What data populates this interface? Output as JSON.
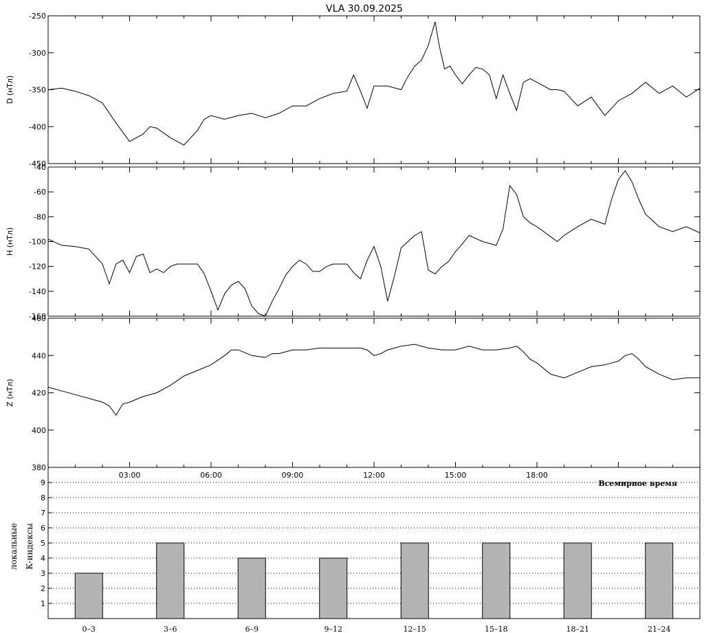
{
  "chart_data": [
    {
      "type": "line",
      "title": "VLA   30.09.2025",
      "ylabel": "D (нТл)",
      "ylim": [
        -450,
        -250
      ],
      "yticks": [
        -450,
        -400,
        -350,
        -300,
        -250
      ],
      "xlim": [
        0,
        24
      ],
      "x": [
        0.0,
        0.5,
        1.0,
        1.5,
        2.0,
        2.5,
        3.0,
        3.5,
        3.75,
        4.0,
        4.5,
        5.0,
        5.5,
        5.75,
        6.0,
        6.5,
        7.0,
        7.5,
        8.0,
        8.5,
        9.0,
        9.5,
        10.0,
        10.5,
        11.0,
        11.25,
        11.5,
        11.75,
        12.0,
        12.5,
        13.0,
        13.25,
        13.5,
        13.75,
        14.0,
        14.25,
        14.4,
        14.6,
        14.8,
        15.0,
        15.25,
        15.5,
        15.75,
        16.0,
        16.25,
        16.5,
        16.75,
        17.0,
        17.25,
        17.5,
        17.75,
        18.0,
        18.25,
        18.5,
        18.75,
        19.0,
        19.5,
        20.0,
        20.5,
        21.0,
        21.5,
        22.0,
        22.5,
        23.0,
        23.5,
        24.0
      ],
      "values": [
        -350,
        -348,
        -352,
        -358,
        -368,
        -395,
        -420,
        -410,
        -400,
        -402,
        -415,
        -425,
        -405,
        -390,
        -385,
        -390,
        -385,
        -382,
        -388,
        -382,
        -372,
        -372,
        -362,
        -355,
        -352,
        -330,
        -352,
        -375,
        -345,
        -345,
        -350,
        -332,
        -318,
        -310,
        -290,
        -258,
        -290,
        -322,
        -318,
        -330,
        -342,
        -330,
        -320,
        -322,
        -330,
        -362,
        -330,
        -355,
        -378,
        -340,
        -335,
        -340,
        -345,
        -350,
        -350,
        -352,
        -372,
        -360,
        -385,
        -365,
        -355,
        -340,
        -355,
        -345,
        -360,
        -348
      ]
    },
    {
      "type": "line",
      "ylabel": "H (нТл)",
      "ylim": [
        -160,
        -40
      ],
      "yticks": [
        -160,
        -140,
        -120,
        -100,
        -80,
        -60,
        -40
      ],
      "xlim": [
        0,
        24
      ],
      "x": [
        0.0,
        0.5,
        1.0,
        1.5,
        2.0,
        2.25,
        2.5,
        2.75,
        3.0,
        3.25,
        3.5,
        3.75,
        4.0,
        4.25,
        4.5,
        4.75,
        5.0,
        5.5,
        5.75,
        6.0,
        6.25,
        6.5,
        6.75,
        7.0,
        7.25,
        7.5,
        7.75,
        8.0,
        8.25,
        8.5,
        8.75,
        9.0,
        9.25,
        9.5,
        9.75,
        10.0,
        10.25,
        10.5,
        11.0,
        11.25,
        11.5,
        11.75,
        12.0,
        12.25,
        12.5,
        12.75,
        13.0,
        13.25,
        13.5,
        13.75,
        14.0,
        14.25,
        14.5,
        14.75,
        15.0,
        15.25,
        15.5,
        16.0,
        16.5,
        16.75,
        17.0,
        17.25,
        17.5,
        17.75,
        18.0,
        18.25,
        18.5,
        18.75,
        19.0,
        19.5,
        20.0,
        20.25,
        20.5,
        20.75,
        21.0,
        21.25,
        21.5,
        21.75,
        22.0,
        22.5,
        23.0,
        23.5,
        24.0
      ],
      "values": [
        -98,
        -103,
        -104,
        -106,
        -118,
        -134,
        -118,
        -115,
        -125,
        -112,
        -110,
        -125,
        -122,
        -125,
        -120,
        -118,
        -118,
        -118,
        -126,
        -140,
        -155,
        -142,
        -135,
        -132,
        -138,
        -152,
        -158,
        -160,
        -148,
        -138,
        -127,
        -120,
        -115,
        -118,
        -124,
        -124,
        -120,
        -118,
        -118,
        -125,
        -130,
        -115,
        -104,
        -120,
        -148,
        -128,
        -105,
        -100,
        -95,
        -92,
        -123,
        -126,
        -120,
        -116,
        -108,
        -102,
        -95,
        -100,
        -103,
        -90,
        -55,
        -62,
        -80,
        -85,
        -88,
        -92,
        -96,
        -100,
        -95,
        -88,
        -82,
        -84,
        -86,
        -66,
        -50,
        -43,
        -52,
        -66,
        -78,
        -88,
        -92,
        -88,
        -93
      ]
    },
    {
      "type": "line",
      "ylabel": "Z (нТл)",
      "ylim": [
        380,
        460
      ],
      "yticks": [
        380,
        400,
        420,
        440,
        460
      ],
      "xlim": [
        0,
        24
      ],
      "x": [
        0.0,
        0.5,
        1.0,
        1.5,
        2.0,
        2.25,
        2.5,
        2.75,
        3.0,
        3.5,
        4.0,
        4.5,
        5.0,
        5.5,
        6.0,
        6.5,
        6.75,
        7.0,
        7.5,
        8.0,
        8.25,
        8.5,
        9.0,
        9.5,
        10.0,
        10.5,
        11.0,
        11.25,
        11.5,
        11.75,
        12.0,
        12.25,
        12.5,
        12.75,
        13.0,
        13.5,
        14.0,
        14.5,
        15.0,
        15.5,
        16.0,
        16.5,
        17.0,
        17.25,
        17.5,
        17.75,
        18.0,
        18.5,
        19.0,
        19.5,
        20.0,
        20.5,
        21.0,
        21.25,
        21.5,
        21.75,
        22.0,
        22.5,
        23.0,
        23.5,
        24.0
      ],
      "values": [
        423,
        421,
        419,
        417,
        415,
        413,
        408,
        414,
        415,
        418,
        420,
        424,
        429,
        432,
        435,
        440,
        443,
        443,
        440,
        439,
        441,
        441,
        443,
        443,
        444,
        444,
        444,
        444,
        444,
        443,
        440,
        441,
        443,
        444,
        445,
        446,
        444,
        443,
        443,
        445,
        443,
        443,
        444,
        445,
        442,
        438,
        436,
        430,
        428,
        431,
        434,
        435,
        437,
        440,
        441,
        438,
        434,
        430,
        427,
        428,
        428
      ]
    },
    {
      "type": "bar",
      "ylabel_line1": "локальные",
      "ylabel_line2": "К-индексы",
      "xlabel": "Всемирное время",
      "ylim": [
        0,
        10
      ],
      "yticks": [
        1,
        2,
        3,
        4,
        5,
        6,
        7,
        8,
        9
      ],
      "categories": [
        "0–3",
        "3–6",
        "6–9",
        "9–12",
        "12–15",
        "15–18",
        "18–21",
        "21–24"
      ],
      "values": [
        3,
        5,
        4,
        4,
        5,
        5,
        5,
        5
      ],
      "bar_color": "#b4b4b4",
      "grid": "dotted"
    }
  ],
  "time_axis": {
    "ticks": [
      3,
      6,
      9,
      12,
      15,
      18
    ],
    "labels": [
      "03:00",
      "06:00",
      "09:00",
      "12:00",
      "15:00",
      "18:00"
    ]
  }
}
